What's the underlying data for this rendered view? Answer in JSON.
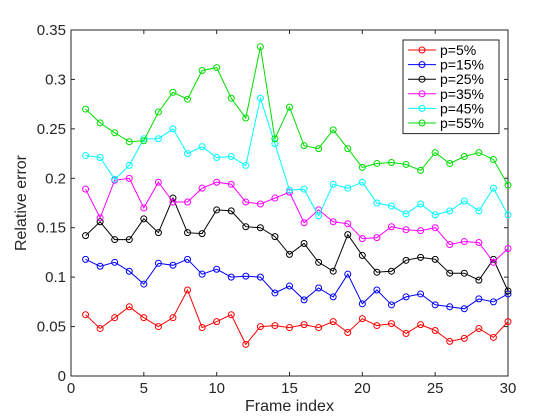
{
  "chart_data": {
    "type": "line",
    "title": "",
    "xlabel": "Frame index",
    "ylabel": "Relative error",
    "xlim": [
      0,
      30
    ],
    "ylim": [
      0,
      0.35
    ],
    "xticks": [
      0,
      5,
      10,
      15,
      20,
      25,
      30
    ],
    "yticks": [
      0,
      0.05,
      0.1,
      0.15,
      0.2,
      0.25,
      0.3,
      0.35
    ],
    "xtick_labels": [
      "0",
      "5",
      "10",
      "15",
      "20",
      "25",
      "30"
    ],
    "ytick_labels": [
      "0",
      "0.05",
      "0.1",
      "0.15",
      "0.2",
      "0.25",
      "0.3",
      "0.35"
    ],
    "grid": false,
    "legend_position": "top-right",
    "marker": "circle",
    "x": [
      1,
      2,
      3,
      4,
      5,
      6,
      7,
      8,
      9,
      10,
      11,
      12,
      13,
      14,
      15,
      16,
      17,
      18,
      19,
      20,
      21,
      22,
      23,
      24,
      25,
      26,
      27,
      28,
      29,
      30
    ],
    "series": [
      {
        "name": "p=5%",
        "color": "#ff0000",
        "values": [
          0.062,
          0.048,
          0.059,
          0.07,
          0.059,
          0.05,
          0.059,
          0.087,
          0.049,
          0.055,
          0.062,
          0.032,
          0.05,
          0.051,
          0.049,
          0.052,
          0.049,
          0.055,
          0.044,
          0.058,
          0.051,
          0.053,
          0.043,
          0.052,
          0.046,
          0.035,
          0.038,
          0.048,
          0.039,
          0.055
        ]
      },
      {
        "name": "p=15%",
        "color": "#0000ff",
        "values": [
          0.118,
          0.111,
          0.115,
          0.106,
          0.093,
          0.114,
          0.112,
          0.118,
          0.103,
          0.108,
          0.1,
          0.101,
          0.1,
          0.084,
          0.091,
          0.077,
          0.089,
          0.08,
          0.103,
          0.073,
          0.087,
          0.072,
          0.08,
          0.083,
          0.072,
          0.07,
          0.068,
          0.078,
          0.075,
          0.083
        ]
      },
      {
        "name": "p=25%",
        "color": "#000000",
        "values": [
          0.142,
          0.156,
          0.138,
          0.138,
          0.159,
          0.145,
          0.18,
          0.145,
          0.144,
          0.168,
          0.167,
          0.151,
          0.15,
          0.141,
          0.123,
          0.134,
          0.115,
          0.106,
          0.143,
          0.122,
          0.105,
          0.106,
          0.117,
          0.12,
          0.118,
          0.104,
          0.104,
          0.097,
          0.118,
          0.086
        ]
      },
      {
        "name": "p=35%",
        "color": "#ff00ff",
        "values": [
          0.189,
          0.16,
          0.198,
          0.2,
          0.17,
          0.196,
          0.176,
          0.176,
          0.19,
          0.196,
          0.194,
          0.176,
          0.174,
          0.18,
          0.186,
          0.155,
          0.168,
          0.156,
          0.154,
          0.139,
          0.14,
          0.151,
          0.148,
          0.147,
          0.15,
          0.133,
          0.136,
          0.135,
          0.115,
          0.129
        ]
      },
      {
        "name": "p=45%",
        "color": "#00ffff",
        "values": [
          0.223,
          0.221,
          0.199,
          0.213,
          0.24,
          0.24,
          0.25,
          0.225,
          0.232,
          0.221,
          0.222,
          0.213,
          0.281,
          0.235,
          0.188,
          0.189,
          0.162,
          0.194,
          0.19,
          0.196,
          0.175,
          0.172,
          0.164,
          0.174,
          0.163,
          0.167,
          0.177,
          0.167,
          0.19,
          0.163
        ]
      },
      {
        "name": "p=55%",
        "color": "#00dd00",
        "values": [
          0.27,
          0.256,
          0.246,
          0.237,
          0.238,
          0.267,
          0.287,
          0.28,
          0.309,
          0.312,
          0.281,
          0.261,
          0.333,
          0.24,
          0.272,
          0.233,
          0.23,
          0.249,
          0.23,
          0.211,
          0.215,
          0.216,
          0.214,
          0.208,
          0.226,
          0.215,
          0.222,
          0.226,
          0.219,
          0.193
        ]
      }
    ]
  }
}
